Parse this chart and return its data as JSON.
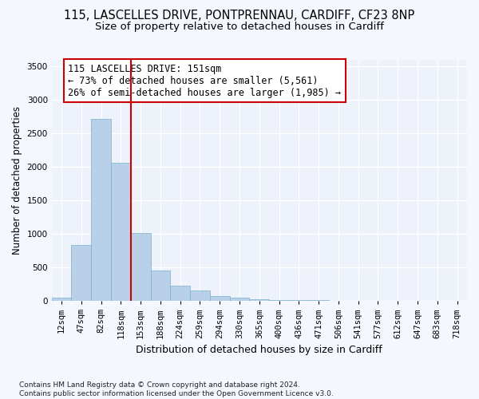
{
  "title_line1": "115, LASCELLES DRIVE, PONTPRENNAU, CARDIFF, CF23 8NP",
  "title_line2": "Size of property relative to detached houses in Cardiff",
  "xlabel": "Distribution of detached houses by size in Cardiff",
  "ylabel": "Number of detached properties",
  "categories": [
    "12sqm",
    "47sqm",
    "82sqm",
    "118sqm",
    "153sqm",
    "188sqm",
    "224sqm",
    "259sqm",
    "294sqm",
    "330sqm",
    "365sqm",
    "400sqm",
    "436sqm",
    "471sqm",
    "506sqm",
    "541sqm",
    "577sqm",
    "612sqm",
    "647sqm",
    "683sqm",
    "718sqm"
  ],
  "values": [
    50,
    840,
    2720,
    2060,
    1010,
    455,
    230,
    155,
    70,
    45,
    25,
    15,
    10,
    15,
    5,
    5,
    0,
    0,
    0,
    0,
    0
  ],
  "bar_color": "#b8d0e8",
  "bar_edge_color": "#7aaed0",
  "vline_x_index": 3.5,
  "vline_color": "#cc0000",
  "annotation_text": "115 LASCELLES DRIVE: 151sqm\n← 73% of detached houses are smaller (5,561)\n26% of semi-detached houses are larger (1,985) →",
  "annotation_box_color": "#ffffff",
  "annotation_box_edge": "#cc0000",
  "ylim": [
    0,
    3600
  ],
  "yticks": [
    0,
    500,
    1000,
    1500,
    2000,
    2500,
    3000,
    3500
  ],
  "footer_text": "Contains HM Land Registry data © Crown copyright and database right 2024.\nContains public sector information licensed under the Open Government Licence v3.0.",
  "bg_color": "#eef2fb",
  "grid_color": "#ffffff",
  "title1_fontsize": 10.5,
  "title2_fontsize": 9.5,
  "xlabel_fontsize": 9,
  "ylabel_fontsize": 8.5,
  "tick_fontsize": 7.5,
  "annotation_fontsize": 8.5,
  "footer_fontsize": 6.5
}
